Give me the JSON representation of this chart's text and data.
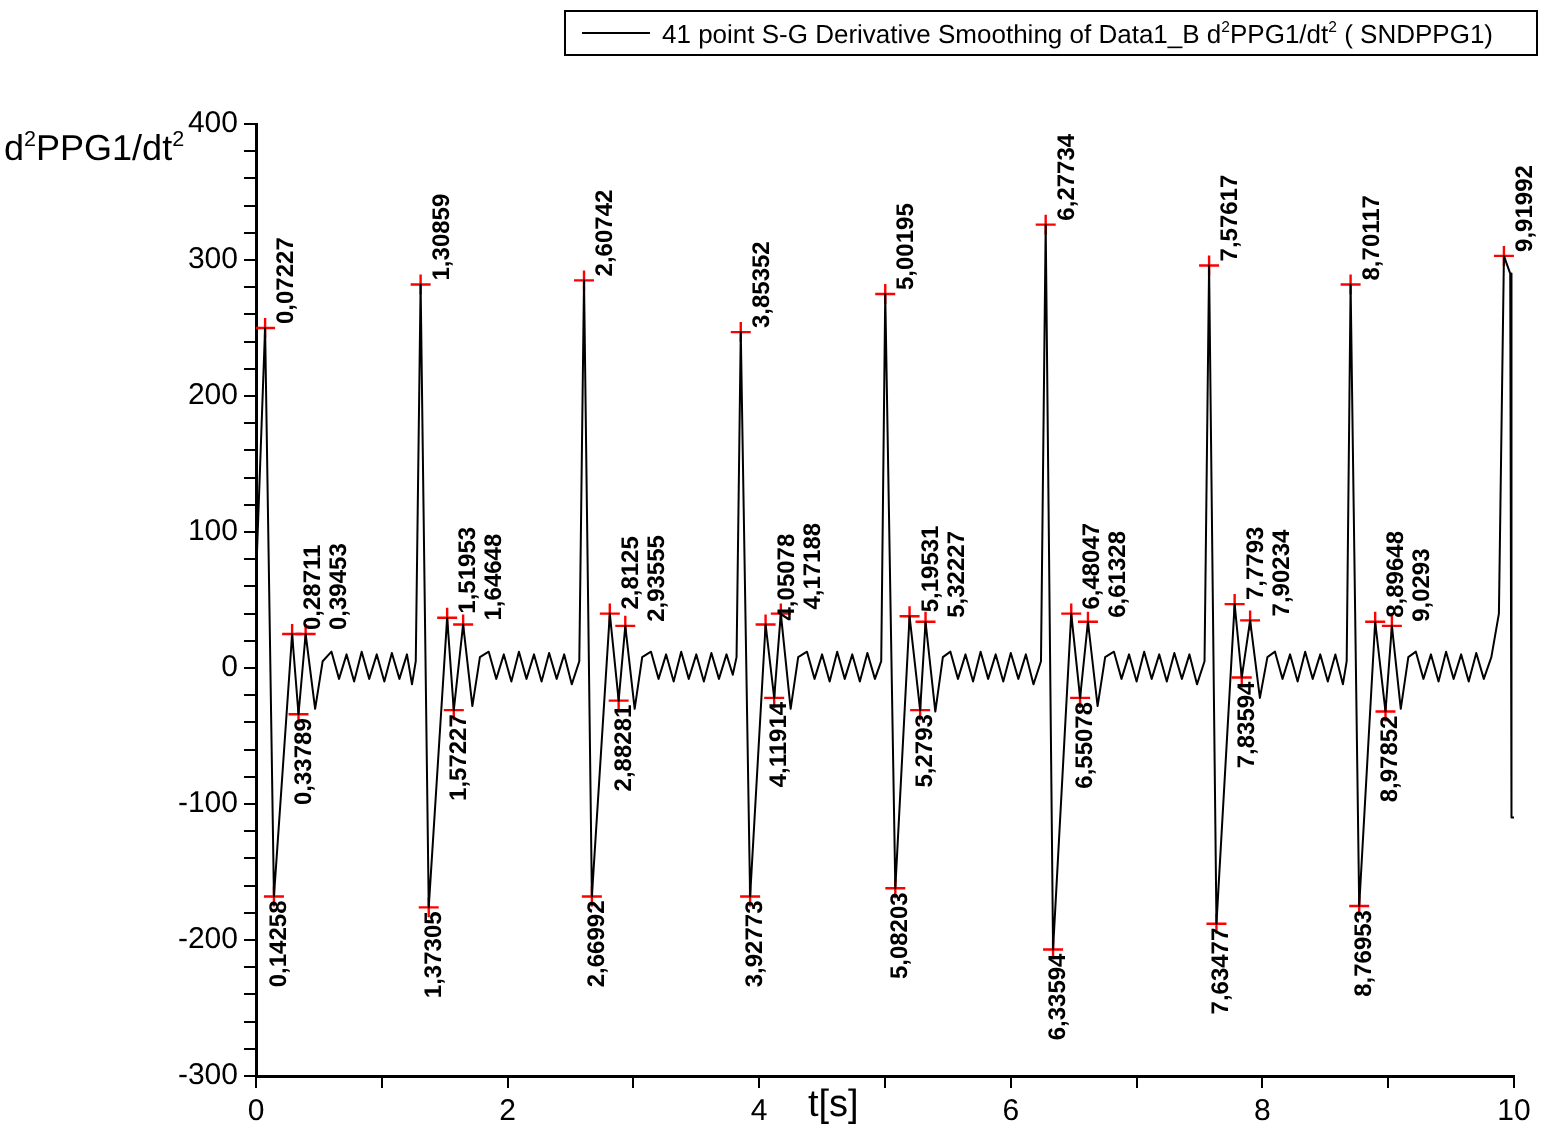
{
  "chart_data": {
    "type": "line",
    "ylabel": "d$^{2}$PPG1/dt$^{2}$",
    "xlabel": "t[s]",
    "legend": "top right",
    "grid": false,
    "xlim": [
      0,
      10
    ],
    "xticks": [
      0,
      {
        "value": 1,
        "label": null
      },
      2,
      {
        "value": 3,
        "label": null
      },
      4,
      {
        "value": 5,
        "label": null
      },
      6,
      {
        "value": 7,
        "label": null
      },
      8,
      {
        "value": 9,
        "label": null
      },
      10
    ],
    "ylim": [
      -300,
      400
    ],
    "yticks": [
      -300,
      {
        "value": -280,
        "label": null
      },
      {
        "value": -260,
        "label": null
      },
      {
        "value": -240,
        "label": null
      },
      {
        "value": -220,
        "label": null
      },
      -200,
      {
        "value": -180,
        "label": null
      },
      {
        "value": -160,
        "label": null
      },
      {
        "value": -140,
        "label": null
      },
      {
        "value": -120,
        "label": null
      },
      -100,
      {
        "value": -80,
        "label": null
      },
      {
        "value": -60,
        "label": null
      },
      {
        "value": -40,
        "label": null
      },
      {
        "value": -20,
        "label": null
      },
      0,
      {
        "value": 20,
        "label": null
      },
      {
        "value": 40,
        "label": null
      },
      {
        "value": 60,
        "label": null
      },
      {
        "value": 80,
        "label": null
      },
      100,
      {
        "value": 120,
        "label": null
      },
      {
        "value": 140,
        "label": null
      },
      {
        "value": 160,
        "label": null
      },
      {
        "value": 180,
        "label": null
      },
      200,
      {
        "value": 220,
        "label": null
      },
      {
        "value": 240,
        "label": null
      },
      {
        "value": 260,
        "label": null
      },
      {
        "value": 280,
        "label": null
      },
      300,
      {
        "value": 320,
        "label": null
      },
      {
        "value": 340,
        "label": null
      },
      {
        "value": 360,
        "label": null
      },
      {
        "value": 380,
        "label": null
      },
      400
    ],
    "series": [
      {
        "name": "41 point S-G Derivative Smoothing of Data1_B d$^{2}$PPG1/dt$^{2}$ ( SNDPPG1)",
        "type": "line",
        "color": "#000000",
        "marker": "none",
        "line_style": "solid",
        "x": [
          0,
          0.07227,
          0.14258,
          0.28711,
          0.33789,
          0.39453,
          0.47,
          0.53,
          0.6,
          0.66,
          0.72,
          0.78,
          0.84,
          0.9,
          0.96,
          1.02,
          1.08,
          1.14,
          1.2,
          1.24,
          1.27,
          1.30859,
          1.37305,
          1.51953,
          1.57227,
          1.64648,
          1.72,
          1.78,
          1.85,
          1.91,
          1.97,
          2.03,
          2.09,
          2.15,
          2.21,
          2.27,
          2.33,
          2.39,
          2.45,
          2.51,
          2.57,
          2.60742,
          2.66992,
          2.8125,
          2.88281,
          2.93555,
          3.01,
          3.07,
          3.14,
          3.2,
          3.26,
          3.32,
          3.38,
          3.44,
          3.5,
          3.56,
          3.62,
          3.68,
          3.74,
          3.79,
          3.82,
          3.85352,
          3.92773,
          4.05078,
          4.11914,
          4.17188,
          4.25,
          4.31,
          4.38,
          4.44,
          4.5,
          4.56,
          4.62,
          4.68,
          4.74,
          4.8,
          4.86,
          4.92,
          4.97,
          5.00195,
          5.08203,
          5.19531,
          5.2793,
          5.32227,
          5.4,
          5.46,
          5.52,
          5.58,
          5.64,
          5.7,
          5.76,
          5.82,
          5.88,
          5.94,
          6.0,
          6.06,
          6.12,
          6.18,
          6.24,
          6.27734,
          6.33594,
          6.48047,
          6.55078,
          6.61328,
          6.69,
          6.75,
          6.82,
          6.88,
          6.94,
          7.0,
          7.06,
          7.12,
          7.18,
          7.24,
          7.3,
          7.36,
          7.42,
          7.48,
          7.54,
          7.57617,
          7.63477,
          7.7793,
          7.83594,
          7.90234,
          7.98,
          8.04,
          8.1,
          8.16,
          8.22,
          8.28,
          8.34,
          8.4,
          8.46,
          8.52,
          8.58,
          8.64,
          8.67,
          8.70117,
          8.76953,
          8.89648,
          8.97852,
          9.0293,
          9.1,
          9.16,
          9.22,
          9.28,
          9.34,
          9.4,
          9.46,
          9.52,
          9.58,
          9.64,
          9.7,
          9.76,
          9.82,
          9.88,
          9.91992,
          9.97,
          9.98,
          10
        ],
        "values": [
          65,
          250,
          -168,
          25,
          -34,
          25,
          -30,
          5,
          12,
          -8,
          10,
          -10,
          12,
          -8,
          10,
          -10,
          11,
          -8,
          10,
          -12,
          5,
          282,
          -176,
          37,
          -31,
          32,
          -28,
          8,
          12,
          -8,
          10,
          -10,
          12,
          -8,
          10,
          -10,
          11,
          -8,
          10,
          -12,
          5,
          285,
          -168,
          40,
          -24,
          31,
          -30,
          8,
          12,
          -8,
          10,
          -10,
          12,
          -8,
          10,
          -10,
          11,
          -8,
          10,
          -5,
          8,
          247,
          -168,
          32,
          -22,
          40,
          -30,
          8,
          12,
          -8,
          10,
          -10,
          12,
          -8,
          10,
          -10,
          11,
          -8,
          5,
          275,
          -162,
          38,
          -31,
          34,
          -32,
          8,
          12,
          -8,
          10,
          -10,
          12,
          -8,
          10,
          -10,
          11,
          -8,
          10,
          -12,
          5,
          326,
          -207,
          40,
          -22,
          34,
          -28,
          8,
          12,
          -8,
          10,
          -10,
          12,
          -8,
          10,
          -10,
          11,
          -8,
          10,
          -12,
          5,
          296,
          -188,
          47,
          -7,
          35,
          -22,
          8,
          12,
          -8,
          10,
          -10,
          12,
          -8,
          10,
          -10,
          10,
          -12,
          5,
          282,
          -175,
          34,
          -32,
          31,
          -30,
          8,
          12,
          -8,
          10,
          -10,
          12,
          -8,
          10,
          -10,
          11,
          -8,
          8,
          40,
          303,
          290,
          -110,
          -110
        ]
      },
      {
        "type": "scatter",
        "color": "#ff0000",
        "marker": "cross",
        "x": [
          0.07227,
          0.14258,
          0.28711,
          0.33789,
          0.39453,
          1.30859,
          1.37305,
          1.51953,
          1.57227,
          1.64648,
          2.60742,
          2.66992,
          2.8125,
          2.88281,
          2.93555,
          3.85352,
          3.92773,
          4.05078,
          4.11914,
          4.17188,
          5.00195,
          5.08203,
          5.19531,
          5.2793,
          5.32227,
          6.27734,
          6.33594,
          6.48047,
          6.55078,
          6.61328,
          7.57617,
          7.63477,
          7.7793,
          7.83594,
          7.90234,
          8.70117,
          8.76953,
          8.89648,
          8.97852,
          9.0293,
          9.91992
        ],
        "values": [
          250,
          -168,
          25,
          -34,
          25,
          282,
          -176,
          37,
          -31,
          32,
          285,
          -168,
          40,
          -24,
          31,
          247,
          -168,
          32,
          -22,
          40,
          275,
          -162,
          38,
          -31,
          34,
          326,
          -207,
          40,
          -22,
          34,
          296,
          -188,
          47,
          -7,
          35,
          282,
          -175,
          34,
          -32,
          31,
          303
        ]
      }
    ],
    "annotations": [
      {
        "text": "0,07227",
        "x": 0.07227,
        "y": 250
      },
      {
        "text": "0,14258",
        "x": 0.14258,
        "y": -168
      },
      {
        "text": "0,28711",
        "x": 0.28711,
        "y": 25
      },
      {
        "text": "0,33789",
        "x": 0.33789,
        "y": -34
      },
      {
        "text": "0,39453",
        "x": 0.39453,
        "y": 25
      },
      {
        "text": "1,30859",
        "x": 1.30859,
        "y": 282
      },
      {
        "text": "1,37305",
        "x": 1.37305,
        "y": -176
      },
      {
        "text": "1,51953",
        "x": 1.51953,
        "y": 37
      },
      {
        "text": "1,57227",
        "x": 1.57227,
        "y": -31
      },
      {
        "text": "1,64648",
        "x": 1.64648,
        "y": 32
      },
      {
        "text": "2,60742",
        "x": 2.60742,
        "y": 285
      },
      {
        "text": "2,66992",
        "x": 2.66992,
        "y": -168
      },
      {
        "text": "2,8125",
        "x": 2.8125,
        "y": 40
      },
      {
        "text": "2,88281",
        "x": 2.88281,
        "y": -24
      },
      {
        "text": "2,93555",
        "x": 2.93555,
        "y": 31
      },
      {
        "text": "3,85352",
        "x": 3.85352,
        "y": 247
      },
      {
        "text": "3,92773",
        "x": 3.92773,
        "y": -168
      },
      {
        "text": "4,05078",
        "x": 4.05078,
        "y": 32
      },
      {
        "text": "4,11914",
        "x": 4.11914,
        "y": -22
      },
      {
        "text": "4,17188",
        "x": 4.17188,
        "y": 40
      },
      {
        "text": "5,00195",
        "x": 5.00195,
        "y": 275
      },
      {
        "text": "5,08203",
        "x": 5.08203,
        "y": -162
      },
      {
        "text": "5,19531",
        "x": 5.19531,
        "y": 38
      },
      {
        "text": "5,2793",
        "x": 5.2793,
        "y": -31
      },
      {
        "text": "5,32227",
        "x": 5.32227,
        "y": 34
      },
      {
        "text": "6,27734",
        "x": 6.27734,
        "y": 326
      },
      {
        "text": "6,33594",
        "x": 6.33594,
        "y": -207
      },
      {
        "text": "6,48047",
        "x": 6.48047,
        "y": 40
      },
      {
        "text": "6,55078",
        "x": 6.55078,
        "y": -22
      },
      {
        "text": "6,61328",
        "x": 6.61328,
        "y": 34
      },
      {
        "text": "7,57617",
        "x": 7.57617,
        "y": 296
      },
      {
        "text": "7,63477",
        "x": 7.63477,
        "y": -188
      },
      {
        "text": "7,7793",
        "x": 7.7793,
        "y": 47
      },
      {
        "text": "7,83594",
        "x": 7.83594,
        "y": -7
      },
      {
        "text": "7,90234",
        "x": 7.90234,
        "y": 35
      },
      {
        "text": "8,70117",
        "x": 8.70117,
        "y": 282
      },
      {
        "text": "8,76953",
        "x": 8.76953,
        "y": -175
      },
      {
        "text": "8,89648",
        "x": 8.89648,
        "y": 34
      },
      {
        "text": "8,97852",
        "x": 8.97852,
        "y": -32
      },
      {
        "text": "9,0293",
        "x": 9.0293,
        "y": 31
      },
      {
        "text": "9,91992",
        "x": 9.91992,
        "y": 303
      }
    ]
  }
}
